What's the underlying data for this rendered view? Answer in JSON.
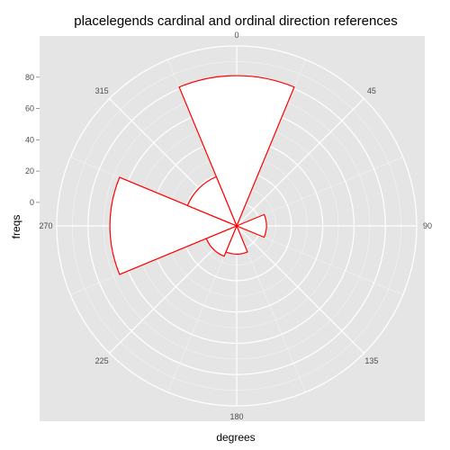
{
  "chart_data": {
    "type": "polar_bar",
    "title": "placelegends cardinal and ordinal direction references",
    "xlabel": "degrees",
    "ylabel": "freqs",
    "angle_ticks": [
      "0",
      "45",
      "90",
      "135",
      "180",
      "225",
      "270",
      "315"
    ],
    "radial_ticks": [
      "0",
      "20",
      "40",
      "60",
      "80"
    ],
    "radial_values": [
      0,
      20,
      40,
      60,
      80
    ],
    "rlim": [
      -15,
      100
    ],
    "bin_width_deg": 45,
    "bars": [
      {
        "center_deg": 0,
        "freq": 81
      },
      {
        "center_deg": 90,
        "freq": 4
      },
      {
        "center_deg": 180,
        "freq": 3
      },
      {
        "center_deg": 225,
        "freq": 6
      },
      {
        "center_deg": 270,
        "freq": 66
      },
      {
        "center_deg": 315,
        "freq": 19
      }
    ],
    "bar_fill": "#ffffff",
    "bar_stroke": "#ff0000",
    "panel_background": "#e5e5e5",
    "grid_color": "#ffffff"
  }
}
